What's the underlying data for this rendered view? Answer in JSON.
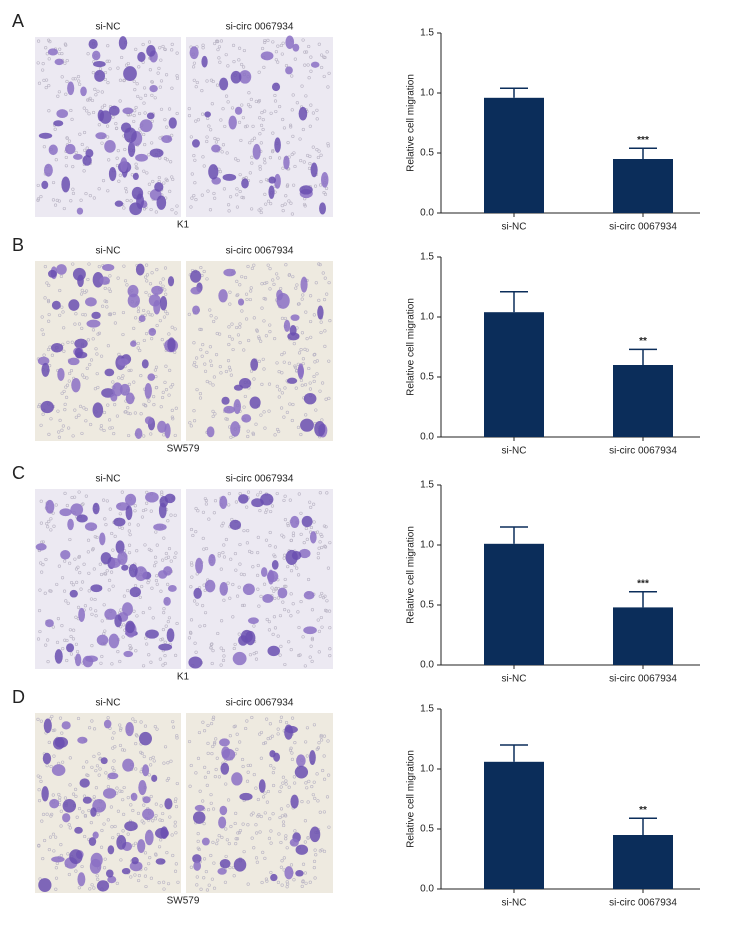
{
  "panels": [
    {
      "label": "A",
      "image_labels": [
        "si-NC",
        "si-circ 0067934"
      ],
      "cell_line": "K1"
    },
    {
      "label": "B",
      "image_labels": [
        "si-NC",
        "si-circ 0067934"
      ],
      "cell_line": "SW579"
    },
    {
      "label": "C",
      "image_labels": [
        "si-NC",
        "si-circ 0067934"
      ],
      "cell_line": "K1"
    },
    {
      "label": "D",
      "image_labels": [
        "si-NC",
        "si-circ 0067934"
      ],
      "cell_line": "SW579"
    }
  ],
  "chart_data": [
    {
      "type": "bar",
      "ylabel": "Relative cell migration",
      "categories": [
        "si-NC",
        "si-circ 0067934"
      ],
      "values": [
        0.96,
        0.45
      ],
      "errors": [
        0.08,
        0.09
      ],
      "significance": "***",
      "color": "#0b2d5a",
      "ylim": [
        0,
        1.5
      ],
      "yticks": [
        {
          "value": 0,
          "label": "0.0"
        },
        {
          "value": 0.5,
          "label": "0.5"
        },
        {
          "value": 1,
          "label": "1.0"
        },
        {
          "value": 1.5,
          "label": "1.5"
        }
      ]
    },
    {
      "type": "bar",
      "ylabel": "Relative cell migration",
      "categories": [
        "si-NC",
        "si-circ 0067934"
      ],
      "values": [
        1.04,
        0.6
      ],
      "errors": [
        0.17,
        0.13
      ],
      "significance": "**",
      "color": "#0b2d5a",
      "ylim": [
        0,
        1.5
      ],
      "yticks": [
        {
          "value": 0,
          "label": "0.0"
        },
        {
          "value": 0.5,
          "label": "0.5"
        },
        {
          "value": 1,
          "label": "1.0"
        },
        {
          "value": 1.5,
          "label": "1.5"
        }
      ]
    },
    {
      "type": "bar",
      "ylabel": "Relative cell migration",
      "categories": [
        "si-NC",
        "si-circ 0067934"
      ],
      "values": [
        1.01,
        0.48
      ],
      "errors": [
        0.14,
        0.13
      ],
      "significance": "***",
      "color": "#0b2d5a",
      "ylim": [
        0,
        1.5
      ],
      "yticks": [
        {
          "value": 0,
          "label": "0.0"
        },
        {
          "value": 0.5,
          "label": "0.5"
        },
        {
          "value": 1,
          "label": "1.0"
        },
        {
          "value": 1.5,
          "label": "1.5"
        }
      ]
    },
    {
      "type": "bar",
      "ylabel": "Relative cell migration",
      "categories": [
        "si-NC",
        "si-circ 0067934"
      ],
      "values": [
        1.06,
        0.45
      ],
      "errors": [
        0.14,
        0.14
      ],
      "significance": "**",
      "color": "#0b2d5a",
      "ylim": [
        0,
        1.5
      ],
      "yticks": [
        {
          "value": 0,
          "label": "0.0"
        },
        {
          "value": 0.5,
          "label": "0.5"
        },
        {
          "value": 1,
          "label": "1.0"
        },
        {
          "value": 1.5,
          "label": "1.5"
        }
      ]
    }
  ]
}
